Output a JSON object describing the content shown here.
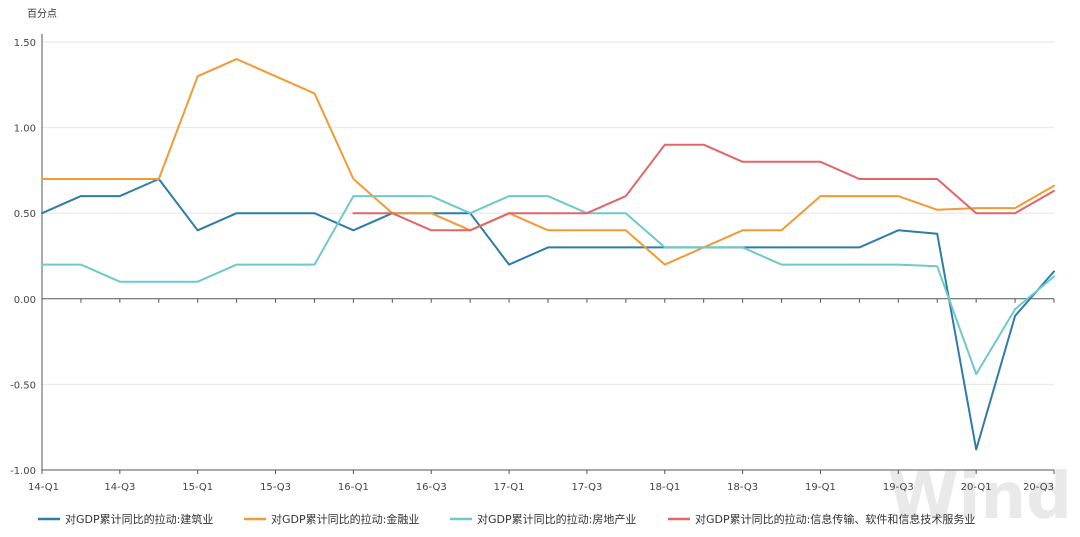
{
  "chart_data": {
    "type": "line",
    "unit_label": "百分点",
    "x": [
      "14-Q1",
      "14-Q2",
      "14-Q3",
      "14-Q4",
      "15-Q1",
      "15-Q2",
      "15-Q3",
      "15-Q4",
      "16-Q1",
      "16-Q2",
      "16-Q3",
      "16-Q4",
      "17-Q1",
      "17-Q2",
      "17-Q3",
      "17-Q4",
      "18-Q1",
      "18-Q2",
      "18-Q3",
      "18-Q4",
      "19-Q1",
      "19-Q2",
      "19-Q3",
      "19-Q4",
      "20-Q1",
      "20-Q2",
      "20-Q3"
    ],
    "x_tick_labels": [
      "14-Q1",
      "14-Q3",
      "15-Q1",
      "15-Q3",
      "16-Q1",
      "16-Q3",
      "17-Q1",
      "17-Q3",
      "18-Q1",
      "18-Q3",
      "19-Q1",
      "19-Q3",
      "20-Q1",
      "20-Q3"
    ],
    "y_ticks": [
      "1.50",
      "1.00",
      "0.50",
      "0.00",
      "-0.50",
      "-1.00"
    ],
    "ylim": [
      -1.0,
      1.5
    ],
    "grid": true,
    "legend_position": "bottom",
    "series": [
      {
        "name": "对GDP累计同比的拉动:建筑业",
        "color": "#2e7ca8",
        "values": [
          0.5,
          0.6,
          0.6,
          0.7,
          0.4,
          0.5,
          0.5,
          0.5,
          0.4,
          0.5,
          0.5,
          0.5,
          0.2,
          0.3,
          0.3,
          0.3,
          0.3,
          0.3,
          0.3,
          0.3,
          0.3,
          0.3,
          0.4,
          0.38,
          -0.88,
          -0.1,
          0.16
        ]
      },
      {
        "name": "对GDP累计同比的拉动:金融业",
        "color": "#f39a35",
        "values": [
          0.7,
          0.7,
          0.7,
          0.7,
          1.3,
          1.4,
          1.3,
          1.2,
          0.7,
          0.5,
          0.5,
          0.4,
          0.5,
          0.4,
          0.4,
          0.4,
          0.2,
          0.3,
          0.4,
          0.4,
          0.6,
          0.6,
          0.6,
          0.52,
          0.53,
          0.53,
          0.66
        ]
      },
      {
        "name": "对GDP累计同比的拉动:房地产业",
        "color": "#6ec9cb",
        "values": [
          0.2,
          0.2,
          0.1,
          0.1,
          0.1,
          0.2,
          0.2,
          0.2,
          0.6,
          0.6,
          0.6,
          0.5,
          0.6,
          0.6,
          0.5,
          0.5,
          0.3,
          0.3,
          0.3,
          0.2,
          0.2,
          0.2,
          0.2,
          0.19,
          -0.44,
          -0.06,
          0.13
        ]
      },
      {
        "name": "对GDP累计同比的拉动:信息传输、软件和信息技术服务业",
        "color": "#e26668",
        "values": [
          null,
          null,
          null,
          null,
          null,
          null,
          null,
          null,
          0.5,
          0.5,
          0.4,
          0.4,
          0.5,
          0.5,
          0.5,
          0.6,
          0.9,
          0.9,
          0.8,
          0.8,
          0.8,
          0.7,
          0.7,
          0.7,
          0.5,
          0.5,
          0.63
        ]
      }
    ]
  },
  "watermark": "Wind"
}
